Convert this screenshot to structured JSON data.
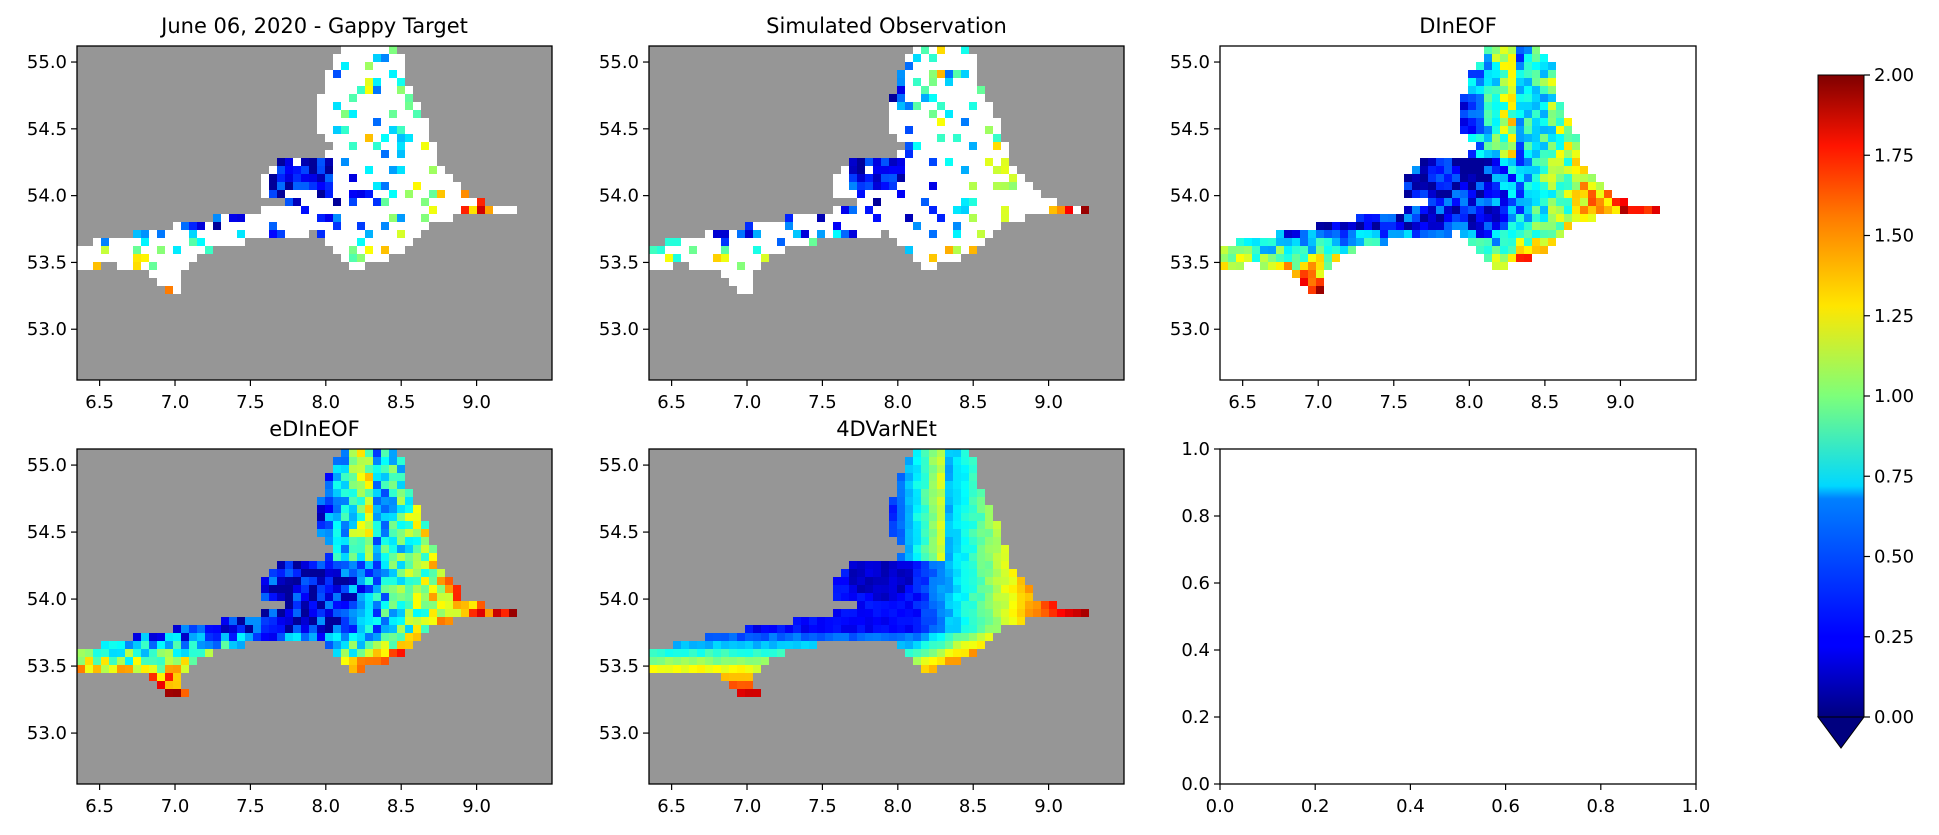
{
  "colors": {
    "missing": "#969696",
    "land": "#ffffff",
    "axes_edge": "#000000",
    "colormap": "jet"
  },
  "colorbar": {
    "vmin": 0.0,
    "vmax": 2.0,
    "extend": "min",
    "ticks": [
      "0.00",
      "0.25",
      "0.50",
      "0.75",
      "1.00",
      "1.25",
      "1.50",
      "1.75",
      "2.00"
    ]
  },
  "chart_data": [
    {
      "type": "heatmap",
      "title": "June 06, 2020 - Gappy Target",
      "background": "missing",
      "fill": "sparse",
      "xlim": [
        6.35,
        9.5
      ],
      "ylim": [
        52.62,
        55.12
      ],
      "xticks": [
        "6.5",
        "7.0",
        "7.5",
        "8.0",
        "8.5",
        "9.0"
      ],
      "yticks": [
        "53.0",
        "53.5",
        "54.0",
        "54.5",
        "55.0"
      ]
    },
    {
      "type": "heatmap",
      "title": "Simulated Observation",
      "background": "missing",
      "fill": "sparser",
      "xlim": [
        6.35,
        9.5
      ],
      "ylim": [
        52.62,
        55.12
      ],
      "xticks": [
        "6.5",
        "7.0",
        "7.5",
        "8.0",
        "8.5",
        "9.0"
      ],
      "yticks": [
        "53.0",
        "53.5",
        "54.0",
        "54.5",
        "55.0"
      ]
    },
    {
      "type": "heatmap",
      "title": "DInEOF",
      "background": "land",
      "fill": "noisy",
      "xlim": [
        6.35,
        9.5
      ],
      "ylim": [
        52.62,
        55.12
      ],
      "xticks": [
        "6.5",
        "7.0",
        "7.5",
        "8.0",
        "8.5",
        "9.0"
      ],
      "yticks": [
        "53.0",
        "53.5",
        "54.0",
        "54.5",
        "55.0"
      ]
    },
    {
      "type": "heatmap",
      "title": "eDInEOF",
      "background": "missing",
      "fill": "noisy",
      "xlim": [
        6.35,
        9.5
      ],
      "ylim": [
        52.62,
        55.12
      ],
      "xticks": [
        "6.5",
        "7.0",
        "7.5",
        "8.0",
        "8.5",
        "9.0"
      ],
      "yticks": [
        "53.0",
        "53.5",
        "54.0",
        "54.5",
        "55.0"
      ]
    },
    {
      "type": "heatmap",
      "title": "4DVarNEt",
      "background": "missing",
      "fill": "smooth",
      "xlim": [
        6.35,
        9.5
      ],
      "ylim": [
        52.62,
        55.12
      ],
      "xticks": [
        "6.5",
        "7.0",
        "7.5",
        "8.0",
        "8.5",
        "9.0"
      ],
      "yticks": [
        "53.0",
        "53.5",
        "54.0",
        "54.5",
        "55.0"
      ]
    },
    {
      "type": "line",
      "title": "",
      "empty": true,
      "xlim": [
        0,
        1
      ],
      "ylim": [
        0,
        1
      ],
      "xticks": [
        "0.0",
        "0.2",
        "0.4",
        "0.6",
        "0.8",
        "1.0"
      ],
      "yticks": [
        "0.0",
        "0.2",
        "0.4",
        "0.6",
        "0.8",
        "1.0"
      ]
    }
  ]
}
